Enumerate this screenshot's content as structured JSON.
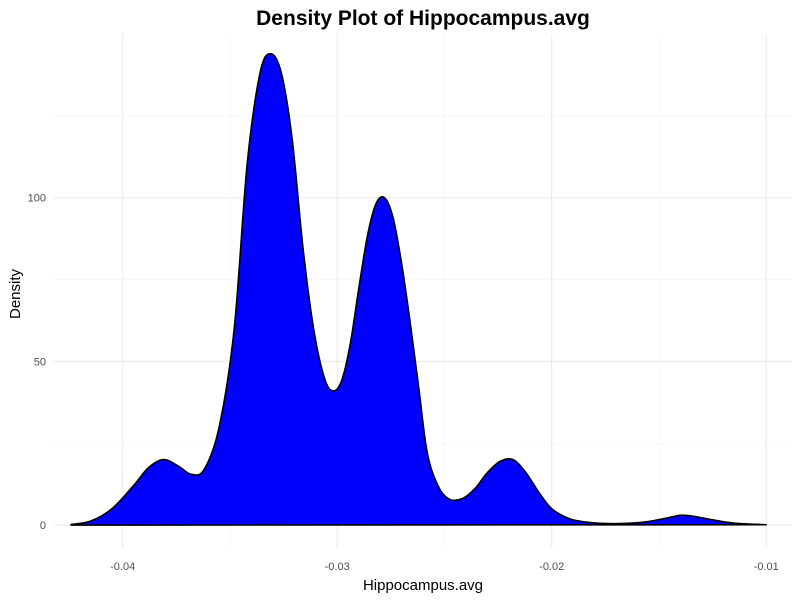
{
  "chart_data": {
    "type": "area",
    "title": "Density Plot of Hippocampus.avg",
    "xlabel": "Hippocampus.avg",
    "ylabel": "Density",
    "xlim": [
      -0.0432,
      -0.0088
    ],
    "ylim": [
      -7,
      150
    ],
    "x_ticks": [
      -0.04,
      -0.03,
      -0.02,
      -0.01
    ],
    "x_tick_labels": [
      "-0.04",
      "-0.03",
      "-0.02",
      "-0.01"
    ],
    "y_ticks": [
      0,
      50,
      100
    ],
    "y_tick_labels": [
      "0",
      "50",
      "100"
    ],
    "grid": true,
    "legend": "none",
    "fill_color": "#0000ff",
    "line_color": "#000000",
    "series": [
      {
        "x": [
          -0.0424,
          -0.0415,
          -0.0405,
          -0.0395,
          -0.0388,
          -0.0381,
          -0.0374,
          -0.0368,
          -0.0362,
          -0.0355,
          -0.0348,
          -0.0342,
          -0.0336,
          -0.0331,
          -0.0326,
          -0.0321,
          -0.0316,
          -0.0311,
          -0.0306,
          -0.0302,
          -0.0298,
          -0.0294,
          -0.029,
          -0.0286,
          -0.0282,
          -0.0278,
          -0.0274,
          -0.027,
          -0.0266,
          -0.0262,
          -0.0258,
          -0.0253,
          -0.0248,
          -0.0242,
          -0.0236,
          -0.023,
          -0.0224,
          -0.0218,
          -0.0212,
          -0.0206,
          -0.02,
          -0.0192,
          -0.0185,
          -0.0176,
          -0.0166,
          -0.0156,
          -0.0146,
          -0.014,
          -0.0134,
          -0.0125,
          -0.0115,
          -0.01
        ],
        "y": [
          0.2,
          1.2,
          5,
          12,
          17.5,
          20,
          18,
          15.5,
          17,
          30,
          60,
          110,
          138,
          144,
          138,
          118,
          85,
          60,
          45,
          41,
          44,
          55,
          72,
          88,
          98,
          100,
          94,
          80,
          62,
          42,
          22,
          12,
          8,
          8,
          11,
          16,
          19.5,
          20,
          16,
          10,
          5,
          2,
          1,
          0.5,
          0.5,
          1,
          2.2,
          3,
          2.7,
          1.6,
          0.6,
          0.1
        ]
      }
    ]
  }
}
